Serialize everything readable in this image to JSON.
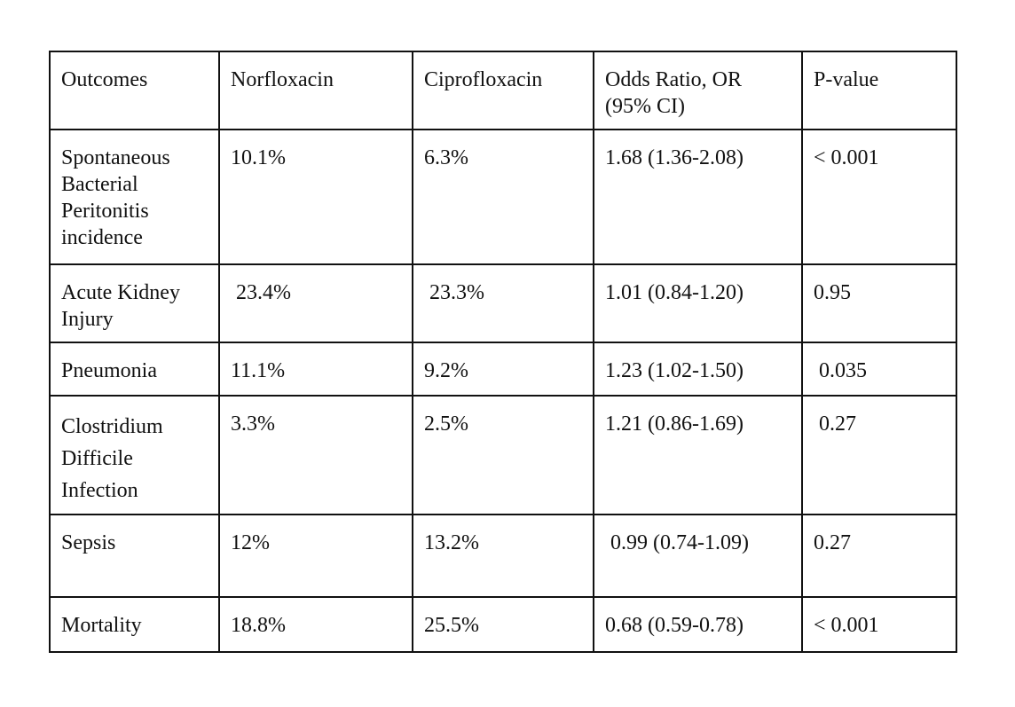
{
  "table": {
    "headers": [
      "Outcomes",
      "Norfloxacin",
      "Ciprofloxacin",
      "Odds Ratio, OR\n(95% CI)",
      "P-value"
    ],
    "rows": [
      [
        "Spontaneous\nBacterial\nPeritonitis\nincidence",
        "10.1%",
        "6.3%",
        "1.68 (1.36-2.08)",
        "< 0.001"
      ],
      [
        "Acute Kidney\nInjury",
        " 23.4%",
        " 23.3%",
        "1.01 (0.84-1.20)",
        "0.95"
      ],
      [
        "Pneumonia",
        "11.1%",
        "9.2%",
        "1.23 (1.02-1.50)",
        " 0.035"
      ],
      [
        "Clostridium\nDifficile\nInfection",
        "3.3%",
        "2.5%",
        "1.21 (0.86-1.69)",
        " 0.27"
      ],
      [
        "Sepsis",
        "12%",
        "13.2%",
        " 0.99 (0.74-1.09)",
        "0.27"
      ],
      [
        "Mortality",
        "18.8%",
        "25.5%",
        "0.68 (0.59-0.78)",
        "< 0.001"
      ]
    ]
  }
}
